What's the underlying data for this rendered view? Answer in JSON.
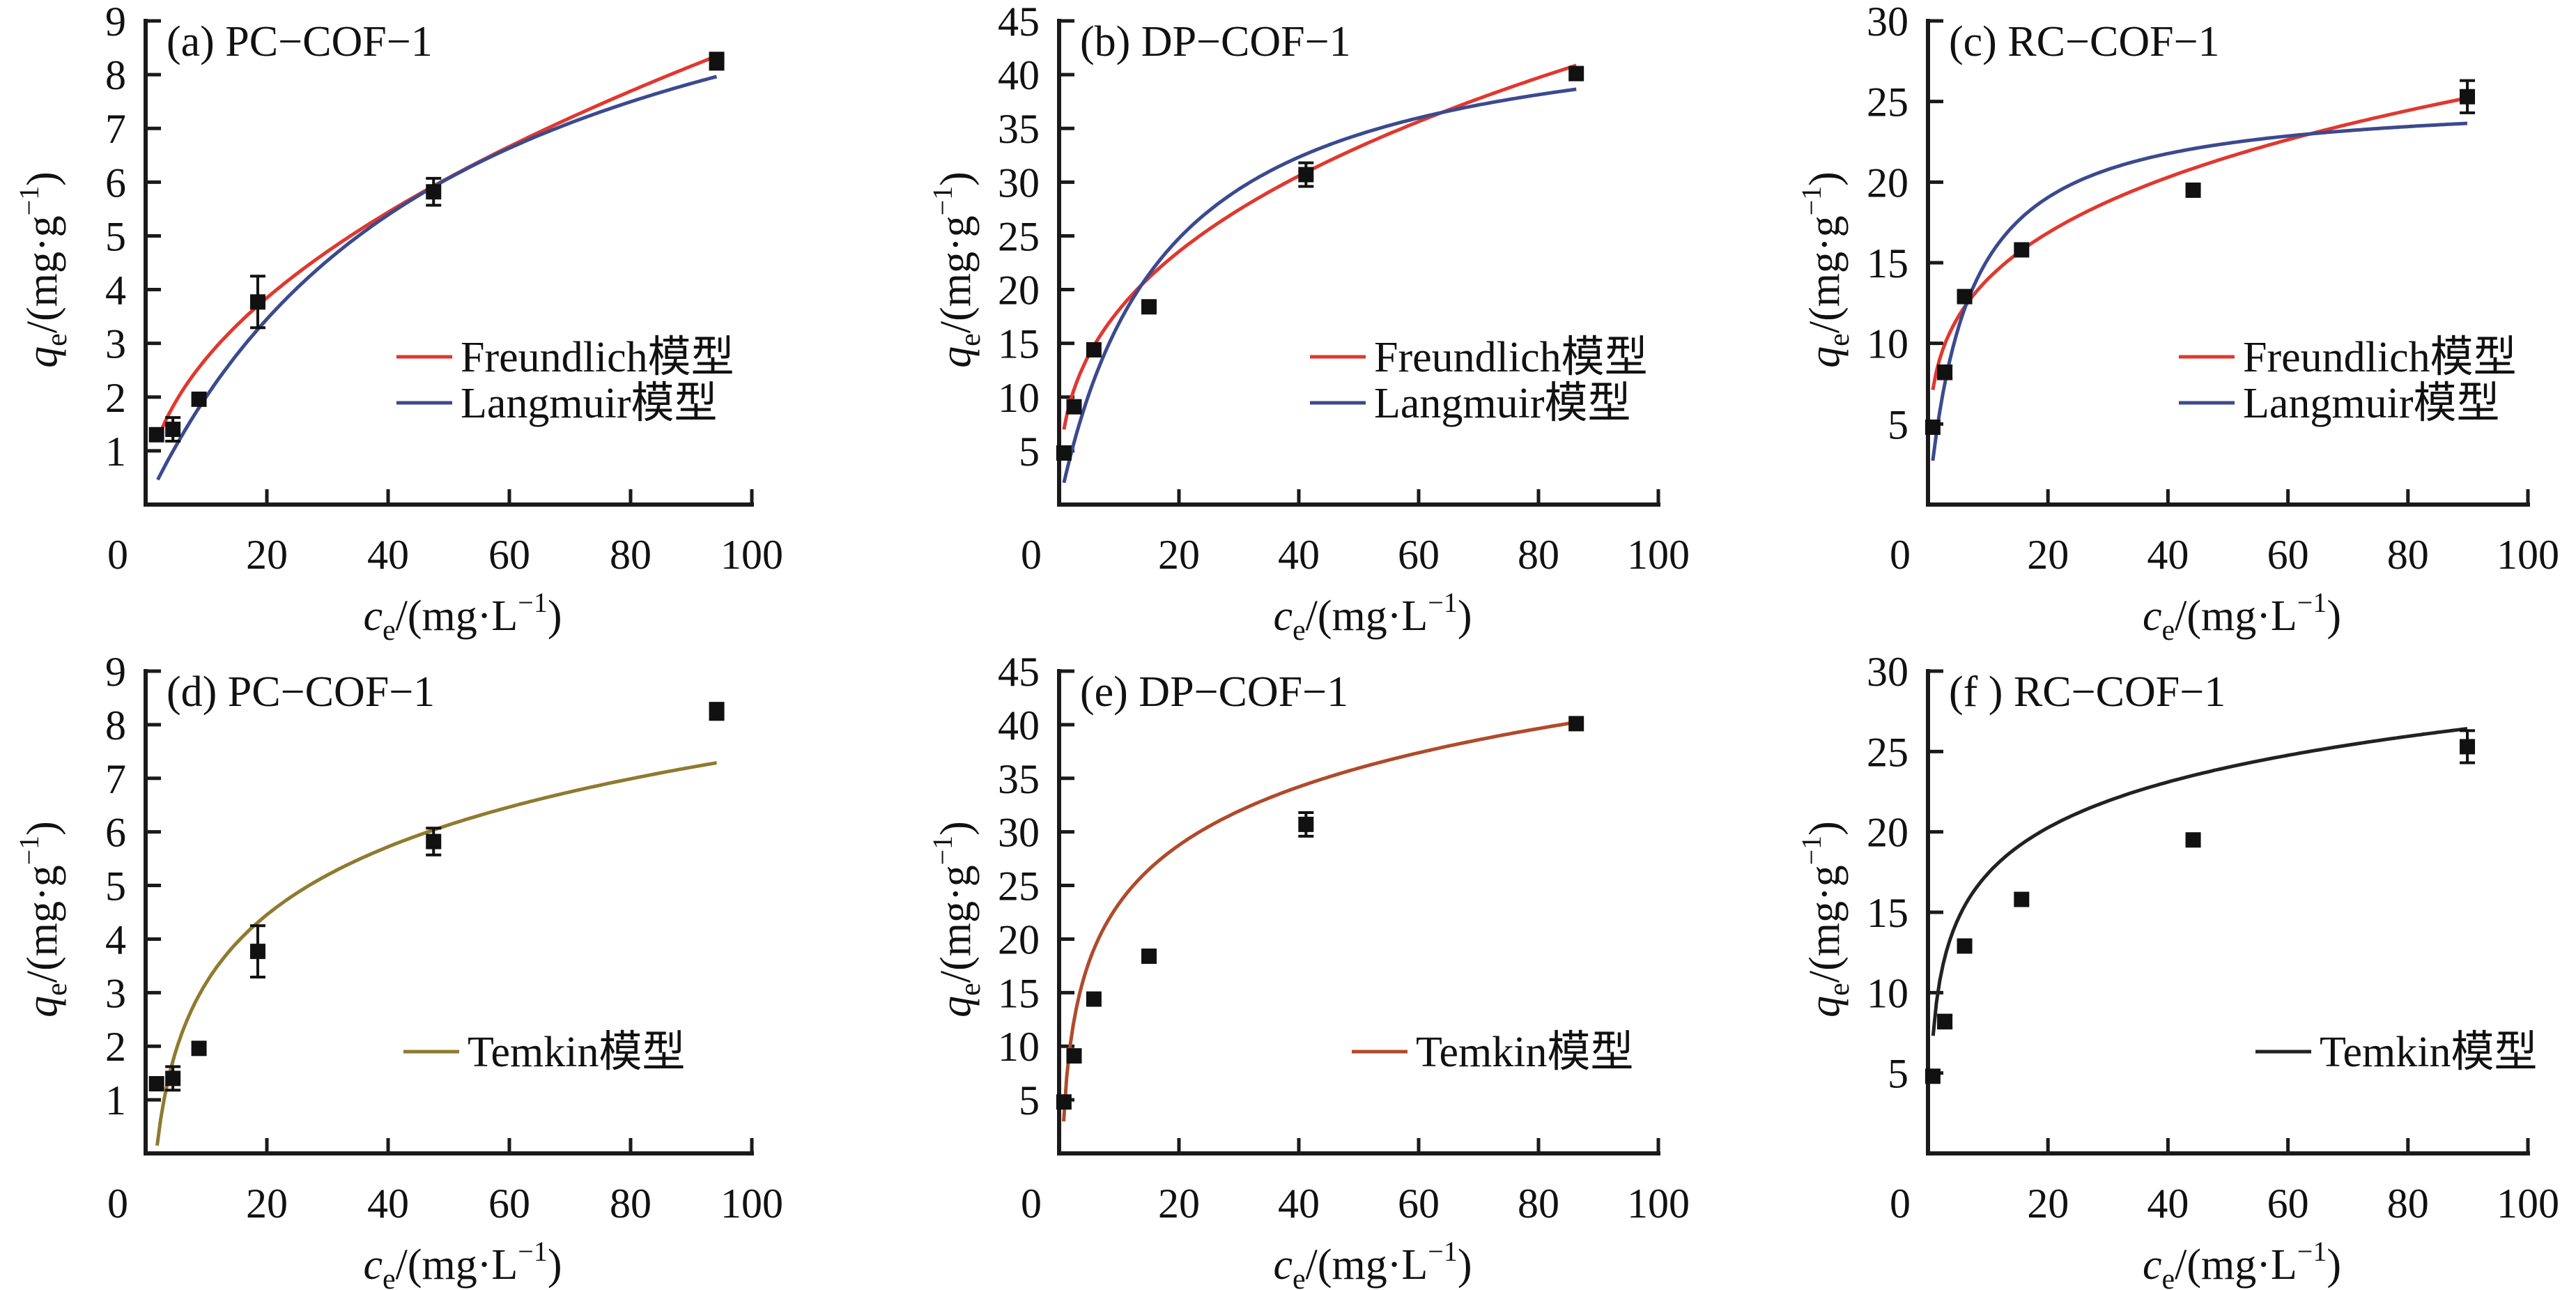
{
  "legend_suffix": "模型",
  "colors": {
    "freundlich": "#e0382f",
    "langmuir": "#3b4a8f",
    "temkin_d": "#8f7a30",
    "temkin_e": "#b04a2c",
    "temkin_f": "#222222",
    "marker": "#111111",
    "axis": "#1a1a1a"
  },
  "chart_data": [
    {
      "id": "a",
      "type": "scatter",
      "title": "(a)  PC−COF−1",
      "xlabel": {
        "main": "c",
        "sub": "e",
        "unit": "/(mg·L",
        "sup": "−1",
        "close": ")"
      },
      "ylabel": {
        "main": "q",
        "sub": "e",
        "unit": "/(mg·g",
        "sup": "−1",
        "close": ")"
      },
      "xlim": [
        0,
        100
      ],
      "ylim": [
        0,
        9
      ],
      "xticks": [
        "0",
        "20",
        "40",
        "60",
        "80",
        "100"
      ],
      "yticks": [
        "1",
        "2",
        "3",
        "4",
        "5",
        "6",
        "7",
        "8",
        "9"
      ],
      "grid": false,
      "legend_position": "lower-right",
      "points": {
        "x": [
          1.8,
          4.5,
          8.8,
          18.5,
          47.5,
          94.2
        ],
        "y": [
          1.3,
          1.4,
          1.96,
          3.77,
          5.82,
          8.25
        ],
        "err": [
          0,
          0.22,
          0,
          0.48,
          0.25,
          0.15
        ]
      },
      "series": [
        {
          "name": "Freundlich",
          "model": "freundlich",
          "params": {
            "K": 0.86,
            "n": 2.0
          },
          "x_range": [
            2,
            94.2
          ],
          "color_key": "freundlich"
        },
        {
          "name": "Langmuir",
          "model": "langmuir",
          "params": {
            "qm": 12.3,
            "KL": 0.0195
          },
          "x_range": [
            2,
            94.2
          ],
          "color_key": "langmuir"
        }
      ]
    },
    {
      "id": "b",
      "type": "scatter",
      "title": "(b)  DP−COF−1",
      "xlabel": {
        "main": "c",
        "sub": "e",
        "unit": "/(mg·L",
        "sup": "−1",
        "close": ")"
      },
      "ylabel": {
        "main": "q",
        "sub": "e",
        "unit": "/(mg·g",
        "sup": "−1",
        "close": ")"
      },
      "xlim": [
        0,
        100
      ],
      "ylim": [
        0,
        45
      ],
      "xticks": [
        "0",
        "20",
        "40",
        "60",
        "80",
        "100"
      ],
      "yticks": [
        "5",
        "10",
        "15",
        "20",
        "25",
        "30",
        "35",
        "40",
        "45"
      ],
      "grid": false,
      "legend_position": "lower-right",
      "points": {
        "x": [
          0.8,
          2.5,
          5.8,
          15.0,
          41.2,
          86.3
        ],
        "y": [
          4.8,
          9.1,
          14.4,
          18.4,
          30.7,
          40.1
        ],
        "err": [
          0,
          0,
          0,
          0,
          1.1,
          0
        ]
      },
      "series": [
        {
          "name": "Freundlich",
          "model": "freundlich",
          "params": {
            "K": 7.6,
            "n": 2.65
          },
          "x_range": [
            0.8,
            86.3
          ],
          "color_key": "freundlich"
        },
        {
          "name": "Langmuir",
          "model": "langmuir",
          "params": {
            "qm": 46.5,
            "KL": 0.057
          },
          "x_range": [
            0.8,
            86.3
          ],
          "color_key": "langmuir"
        }
      ]
    },
    {
      "id": "c",
      "type": "scatter",
      "title": "(c)  RC−COF−1",
      "xlabel": {
        "main": "c",
        "sub": "e",
        "unit": "/(mg·L",
        "sup": "−1",
        "close": ")"
      },
      "ylabel": {
        "main": "q",
        "sub": "e",
        "unit": "/(mg·g",
        "sup": "−1",
        "close": ")"
      },
      "xlim": [
        0,
        100
      ],
      "ylim": [
        0,
        30
      ],
      "xticks": [
        "0",
        "20",
        "40",
        "60",
        "80",
        "100"
      ],
      "yticks": [
        "5",
        "10",
        "15",
        "20",
        "25",
        "30"
      ],
      "grid": false,
      "legend_position": "lower-right",
      "points": {
        "x": [
          0.8,
          2.8,
          6.1,
          15.6,
          44.2,
          89.9
        ],
        "y": [
          4.8,
          8.2,
          12.9,
          15.8,
          19.5,
          25.3
        ],
        "err": [
          0,
          0.4,
          0,
          0,
          0,
          1.0
        ]
      },
      "series": [
        {
          "name": "Freundlich",
          "model": "freundlich",
          "params": {
            "K": 7.55,
            "n": 3.73
          },
          "x_range": [
            0.8,
            89.9
          ],
          "color_key": "freundlich"
        },
        {
          "name": "Langmuir",
          "model": "langmuir",
          "params": {
            "qm": 25.4,
            "KL": 0.15
          },
          "x_range": [
            0.8,
            89.9
          ],
          "color_key": "langmuir"
        }
      ]
    },
    {
      "id": "d",
      "type": "scatter",
      "title": "(d) PC−COF−1",
      "xlabel": {
        "main": "c",
        "sub": "e",
        "unit": "/(mg·L",
        "sup": "−1",
        "close": ")"
      },
      "ylabel": {
        "main": "q",
        "sub": "e",
        "unit": "/(mg·g",
        "sup": "−1",
        "close": ")"
      },
      "xlim": [
        0,
        100
      ],
      "ylim": [
        0,
        9
      ],
      "xticks": [
        "0",
        "20",
        "40",
        "60",
        "80",
        "100"
      ],
      "yticks": [
        "1",
        "2",
        "3",
        "4",
        "5",
        "6",
        "7",
        "8",
        "9"
      ],
      "grid": false,
      "legend_position": "lower-right",
      "points": {
        "x": [
          1.8,
          4.5,
          8.8,
          18.5,
          47.5,
          94.2
        ],
        "y": [
          1.3,
          1.4,
          1.96,
          3.77,
          5.82,
          8.25
        ],
        "err": [
          0,
          0.22,
          0,
          0.48,
          0.25,
          0.15
        ]
      },
      "series": [
        {
          "name": "Temkin",
          "model": "temkin",
          "params": {
            "B": 1.83,
            "A": 0.57
          },
          "x_range": [
            1.9,
            94.2
          ],
          "color_key": "temkin_d"
        }
      ]
    },
    {
      "id": "e",
      "type": "scatter",
      "title": "(e)  DP−COF−1",
      "xlabel": {
        "main": "c",
        "sub": "e",
        "unit": "/(mg·L",
        "sup": "−1",
        "close": ")"
      },
      "ylabel": {
        "main": "q",
        "sub": "e",
        "unit": "/(mg·g",
        "sup": "−1",
        "close": ")"
      },
      "xlim": [
        0,
        100
      ],
      "ylim": [
        0,
        45
      ],
      "xticks": [
        "0",
        "20",
        "40",
        "60",
        "80",
        "100"
      ],
      "yticks": [
        "5",
        "10",
        "15",
        "20",
        "25",
        "30",
        "35",
        "40",
        "45"
      ],
      "grid": false,
      "legend_position": "lower-right",
      "points": {
        "x": [
          0.8,
          2.5,
          5.8,
          15.0,
          41.2,
          86.3
        ],
        "y": [
          4.8,
          9.1,
          14.4,
          18.4,
          30.7,
          40.1
        ],
        "err": [
          0,
          0,
          0,
          0,
          1.1,
          0
        ]
      },
      "series": [
        {
          "name": "Temkin",
          "model": "temkin",
          "params": {
            "B": 7.85,
            "A": 1.95
          },
          "x_range": [
            0.75,
            86.3
          ],
          "color_key": "temkin_e"
        }
      ]
    },
    {
      "id": "f",
      "type": "scatter",
      "title": "(f )  RC−COF−1",
      "xlabel": {
        "main": "c",
        "sub": "e",
        "unit": "/(mg·L",
        "sup": "−1",
        "close": ")"
      },
      "ylabel": {
        "main": "q",
        "sub": "e",
        "unit": "/(mg·g",
        "sup": "−1",
        "close": ")"
      },
      "xlim": [
        0,
        100
      ],
      "ylim": [
        0,
        30
      ],
      "xticks": [
        "0",
        "20",
        "40",
        "60",
        "80",
        "100"
      ],
      "yticks": [
        "5",
        "10",
        "15",
        "20",
        "25",
        "30"
      ],
      "grid": false,
      "legend_position": "lower-right",
      "points": {
        "x": [
          0.8,
          2.8,
          6.1,
          15.6,
          44.2,
          89.9
        ],
        "y": [
          4.8,
          8.2,
          12.9,
          15.8,
          19.5,
          25.3
        ],
        "err": [
          0,
          0.4,
          0,
          0,
          0,
          1.0
        ]
      },
      "series": [
        {
          "name": "Temkin",
          "model": "temkin",
          "params": {
            "B": 4.1,
            "A": 7.0
          },
          "x_range": [
            0.85,
            89.9
          ],
          "color_key": "temkin_f"
        }
      ]
    }
  ]
}
